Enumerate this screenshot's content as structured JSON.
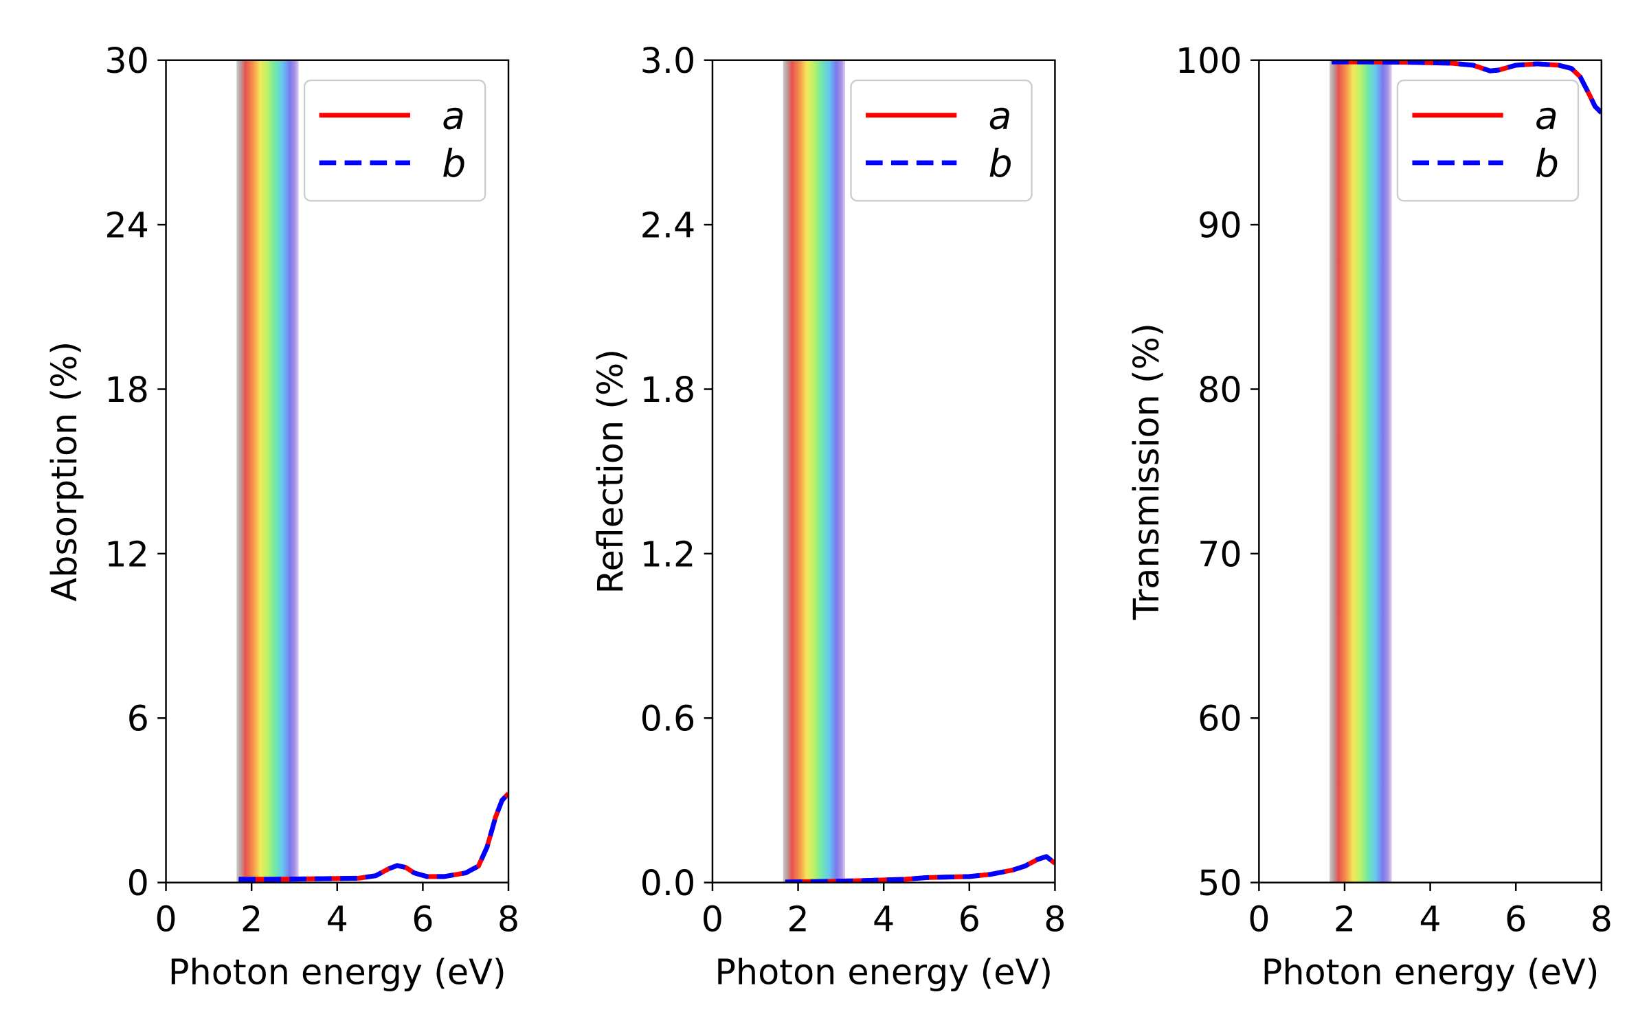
{
  "chart_data": [
    {
      "type": "line",
      "ylabel": "Absorption (%)",
      "xlabel": "Photon energy (eV)",
      "xlim": [
        0,
        8
      ],
      "ylim": [
        0,
        30
      ],
      "xticks": [
        "0",
        "2",
        "4",
        "6",
        "8"
      ],
      "yticks": [
        "0",
        "6",
        "12",
        "18",
        "24",
        "30"
      ],
      "visible_band_eV": [
        1.65,
        3.1
      ],
      "legend": {
        "position": "top-right",
        "entries": [
          "a",
          "b"
        ]
      },
      "series": [
        {
          "name": "a",
          "color": "#ff0000",
          "style": "solid",
          "x": [
            1.7,
            2.5,
            3.5,
            4.5,
            4.9,
            5.2,
            5.4,
            5.6,
            5.8,
            6.1,
            6.5,
            7.0,
            7.3,
            7.5,
            7.7,
            7.85,
            8.0
          ],
          "y": [
            0.12,
            0.12,
            0.14,
            0.16,
            0.25,
            0.5,
            0.62,
            0.55,
            0.35,
            0.22,
            0.22,
            0.35,
            0.6,
            1.3,
            2.4,
            3.0,
            3.25
          ]
        },
        {
          "name": "b",
          "color": "#0000ff",
          "style": "dashed",
          "x": [
            1.7,
            2.5,
            3.5,
            4.5,
            4.9,
            5.2,
            5.4,
            5.6,
            5.8,
            6.1,
            6.5,
            7.0,
            7.3,
            7.5,
            7.7,
            7.85,
            8.0
          ],
          "y": [
            0.12,
            0.12,
            0.14,
            0.16,
            0.25,
            0.5,
            0.62,
            0.55,
            0.35,
            0.22,
            0.22,
            0.35,
            0.6,
            1.3,
            2.4,
            3.0,
            3.25
          ]
        }
      ]
    },
    {
      "type": "line",
      "ylabel": "Reflection (%)",
      "xlabel": "Photon energy (eV)",
      "xlim": [
        0,
        8
      ],
      "ylim": [
        0,
        3.0
      ],
      "xticks": [
        "0",
        "2",
        "4",
        "6",
        "8"
      ],
      "yticks": [
        "0.0",
        "0.6",
        "1.2",
        "1.8",
        "2.4",
        "3.0"
      ],
      "visible_band_eV": [
        1.65,
        3.1
      ],
      "legend": {
        "position": "top-right",
        "entries": [
          "a",
          "b"
        ]
      },
      "series": [
        {
          "name": "a",
          "color": "#ff0000",
          "style": "solid",
          "x": [
            1.7,
            2.5,
            3.5,
            4.5,
            5.0,
            5.5,
            6.0,
            6.5,
            7.0,
            7.3,
            7.6,
            7.8,
            8.0
          ],
          "y": [
            0.002,
            0.004,
            0.007,
            0.012,
            0.018,
            0.02,
            0.022,
            0.03,
            0.045,
            0.06,
            0.085,
            0.095,
            0.07
          ]
        },
        {
          "name": "b",
          "color": "#0000ff",
          "style": "dashed",
          "x": [
            1.7,
            2.5,
            3.5,
            4.5,
            5.0,
            5.5,
            6.0,
            6.5,
            7.0,
            7.3,
            7.6,
            7.8,
            8.0
          ],
          "y": [
            0.002,
            0.004,
            0.007,
            0.012,
            0.018,
            0.02,
            0.022,
            0.03,
            0.045,
            0.06,
            0.085,
            0.095,
            0.07
          ]
        }
      ]
    },
    {
      "type": "line",
      "ylabel": "Transmission (%)",
      "xlabel": "Photon energy (eV)",
      "xlim": [
        0,
        8
      ],
      "ylim": [
        50,
        100
      ],
      "xticks": [
        "0",
        "2",
        "4",
        "6",
        "8"
      ],
      "yticks": [
        "50",
        "60",
        "70",
        "80",
        "90",
        "100"
      ],
      "visible_band_eV": [
        1.65,
        3.1
      ],
      "legend": {
        "position": "top-right",
        "entries": [
          "a",
          "b"
        ]
      },
      "series": [
        {
          "name": "a",
          "color": "#ff0000",
          "style": "solid",
          "x": [
            1.7,
            2.5,
            3.5,
            4.5,
            5.0,
            5.4,
            5.6,
            6.0,
            6.5,
            7.0,
            7.3,
            7.5,
            7.7,
            7.85,
            8.0
          ],
          "y": [
            99.9,
            99.9,
            99.88,
            99.82,
            99.7,
            99.35,
            99.4,
            99.7,
            99.78,
            99.7,
            99.5,
            99.0,
            98.0,
            97.2,
            96.8
          ]
        },
        {
          "name": "b",
          "color": "#0000ff",
          "style": "dashed",
          "x": [
            1.7,
            2.5,
            3.5,
            4.5,
            5.0,
            5.4,
            5.6,
            6.0,
            6.5,
            7.0,
            7.3,
            7.5,
            7.7,
            7.85,
            8.0
          ],
          "y": [
            99.9,
            99.9,
            99.88,
            99.82,
            99.7,
            99.35,
            99.4,
            99.7,
            99.78,
            99.7,
            99.5,
            99.0,
            98.0,
            97.2,
            96.8
          ]
        }
      ]
    }
  ]
}
